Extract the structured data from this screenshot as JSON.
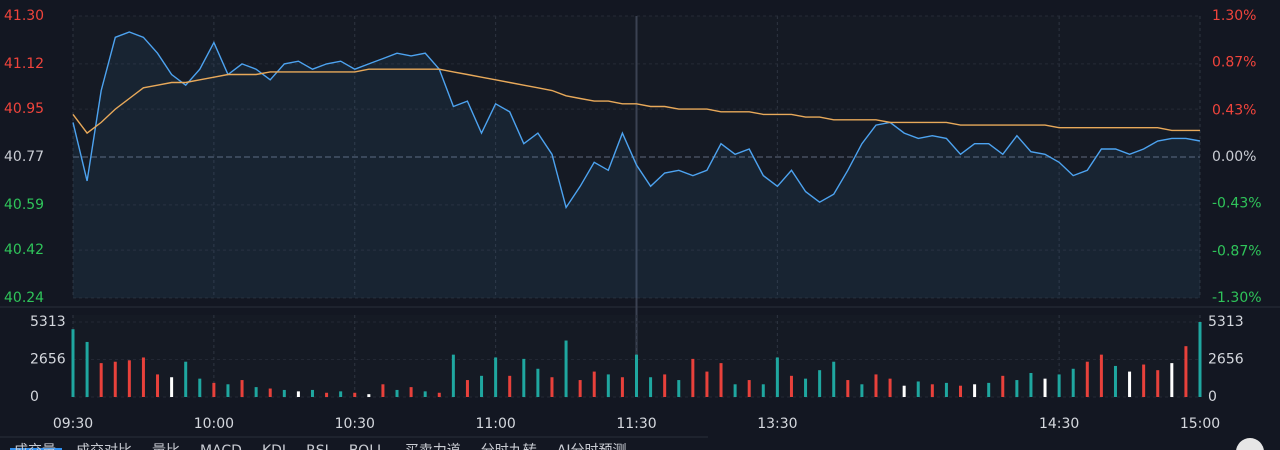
{
  "chart_data": [
    {
      "type": "line",
      "xlim": [
        0,
        240
      ],
      "xticks": [
        {
          "value": 0,
          "label": "09:30"
        },
        {
          "value": 30,
          "label": "10:00"
        },
        {
          "value": 60,
          "label": "10:30"
        },
        {
          "value": 90,
          "label": "11:00"
        },
        {
          "value": 120,
          "label": "11:30"
        },
        {
          "value": 150,
          "label": "13:30"
        },
        {
          "value": 210,
          "label": "14:30"
        },
        {
          "value": 240,
          "label": "15:00"
        }
      ],
      "ylim": [
        40.24,
        41.3
      ],
      "yticks": [
        {
          "value": 41.3,
          "label": "41.30"
        },
        41.12,
        40.95,
        40.77,
        40.59,
        40.42,
        40.24
      ],
      "y2lim": [
        -1.3,
        1.3
      ],
      "y2ticks": [
        {
          "value": 1.3,
          "label": "1.30%"
        },
        {
          "value": 0.87,
          "label": "0.87%"
        },
        {
          "value": 0.43,
          "label": "0.43%"
        },
        {
          "value": 0,
          "label": "0.00%"
        },
        {
          "value": -0.43,
          "label": "-0.43%"
        },
        {
          "value": -0.87,
          "label": "-0.87%"
        },
        {
          "value": -1.3,
          "label": "-1.30%"
        }
      ],
      "up_color": "#f0443c",
      "down_color": "#2fc45a",
      "grid": true,
      "series": [
        {
          "color": "#4da3f0",
          "values": [
            40.9,
            40.68,
            41.02,
            41.22,
            41.24,
            41.22,
            41.16,
            41.08,
            41.04,
            41.1,
            41.2,
            41.08,
            41.12,
            41.1,
            41.06,
            41.12,
            41.13,
            41.1,
            41.12,
            41.13,
            41.1,
            41.12,
            41.14,
            41.16,
            41.15,
            41.16,
            41.1,
            40.96,
            40.98,
            40.86,
            40.97,
            40.94,
            40.82,
            40.86,
            40.78,
            40.58,
            40.66,
            40.75,
            40.72,
            40.86,
            40.74,
            40.66,
            40.71,
            40.72,
            40.7,
            40.72,
            40.82,
            40.78,
            40.8,
            40.7,
            40.66,
            40.72,
            40.64,
            40.6,
            40.63,
            40.72,
            40.82,
            40.89,
            40.9,
            40.86,
            40.84,
            40.85,
            40.84,
            40.78,
            40.82,
            40.82,
            40.78,
            40.85,
            40.79,
            40.78,
            40.75,
            40.7,
            40.72,
            40.8,
            40.8,
            40.78,
            40.8,
            40.83,
            40.84,
            40.84,
            40.83
          ]
        },
        {
          "color": "#e8a95a",
          "values": [
            40.93,
            40.86,
            40.9,
            40.95,
            40.99,
            41.03,
            41.04,
            41.05,
            41.05,
            41.06,
            41.07,
            41.08,
            41.08,
            41.08,
            41.09,
            41.09,
            41.09,
            41.09,
            41.09,
            41.09,
            41.09,
            41.1,
            41.1,
            41.1,
            41.1,
            41.1,
            41.1,
            41.09,
            41.08,
            41.07,
            41.06,
            41.05,
            41.04,
            41.03,
            41.02,
            41.0,
            40.99,
            40.98,
            40.98,
            40.97,
            40.97,
            40.96,
            40.96,
            40.95,
            40.95,
            40.95,
            40.94,
            40.94,
            40.94,
            40.93,
            40.93,
            40.93,
            40.92,
            40.92,
            40.91,
            40.91,
            40.91,
            40.91,
            40.9,
            40.9,
            40.9,
            40.9,
            40.9,
            40.89,
            40.89,
            40.89,
            40.89,
            40.89,
            40.89,
            40.89,
            40.88,
            40.88,
            40.88,
            40.88,
            40.88,
            40.88,
            40.88,
            40.88,
            40.87,
            40.87,
            40.87
          ]
        }
      ]
    },
    {
      "type": "bar",
      "ylim": [
        0,
        5313
      ],
      "yticks": [
        5313,
        2656,
        0
      ],
      "values": [
        4800,
        3900,
        2400,
        2500,
        2600,
        2800,
        1600,
        1400,
        2500,
        1300,
        1000,
        900,
        1200,
        700,
        600,
        500,
        400,
        500,
        300,
        400,
        300,
        200,
        900,
        500,
        700,
        400,
        300,
        3000,
        1200,
        1500,
        2800,
        1500,
        2700,
        2000,
        1400,
        4000,
        1200,
        1800,
        1600,
        1400,
        3000,
        1400,
        1600,
        1200,
        2700,
        1800,
        2400,
        900,
        1200,
        900,
        2800,
        1500,
        1300,
        1900,
        2500,
        1200,
        900,
        1600,
        1300,
        800,
        1100,
        900,
        1000,
        800,
        900,
        1000,
        1500,
        1200,
        1700,
        1300,
        1600,
        2000,
        2500,
        3000,
        2200,
        1800,
        2300,
        1900,
        2400,
        3600,
        5313
      ],
      "colors": [
        "#1fa7a0",
        "#1fa7a0",
        "#e8413b",
        "#e8413b",
        "#e8413b",
        "#e8413b",
        "#e8413b",
        "#ffffff",
        "#1fa7a0",
        "#1fa7a0",
        "#e8413b",
        "#1fa7a0",
        "#e8413b",
        "#1fa7a0",
        "#e8413b",
        "#1fa7a0",
        "#ffffff",
        "#1fa7a0",
        "#e8413b",
        "#1fa7a0",
        "#e8413b",
        "#ffffff",
        "#e8413b",
        "#1fa7a0",
        "#e8413b",
        "#1fa7a0",
        "#e8413b",
        "#1fa7a0",
        "#e8413b",
        "#1fa7a0",
        "#1fa7a0",
        "#e8413b",
        "#1fa7a0",
        "#1fa7a0",
        "#e8413b",
        "#1fa7a0",
        "#e8413b",
        "#e8413b",
        "#1fa7a0",
        "#e8413b",
        "#1fa7a0",
        "#1fa7a0",
        "#e8413b",
        "#1fa7a0",
        "#e8413b",
        "#e8413b",
        "#e8413b",
        "#1fa7a0",
        "#e8413b",
        "#1fa7a0",
        "#1fa7a0",
        "#e8413b",
        "#1fa7a0",
        "#1fa7a0",
        "#1fa7a0",
        "#e8413b",
        "#1fa7a0",
        "#e8413b",
        "#e8413b",
        "#ffffff",
        "#1fa7a0",
        "#e8413b",
        "#1fa7a0",
        "#e8413b",
        "#ffffff",
        "#1fa7a0",
        "#e8413b",
        "#1fa7a0",
        "#1fa7a0",
        "#ffffff",
        "#1fa7a0",
        "#1fa7a0",
        "#e8413b",
        "#e8413b",
        "#1fa7a0",
        "#ffffff",
        "#e8413b",
        "#e8413b",
        "#ffffff",
        "#e8413b",
        "#1fa7a0"
      ]
    }
  ],
  "tabs": [
    "成交量",
    "成交对比",
    "量比",
    "MACD",
    "KDJ",
    "RSI",
    "BOLL",
    "买卖力道",
    "分时九转",
    "AI分时预测"
  ]
}
